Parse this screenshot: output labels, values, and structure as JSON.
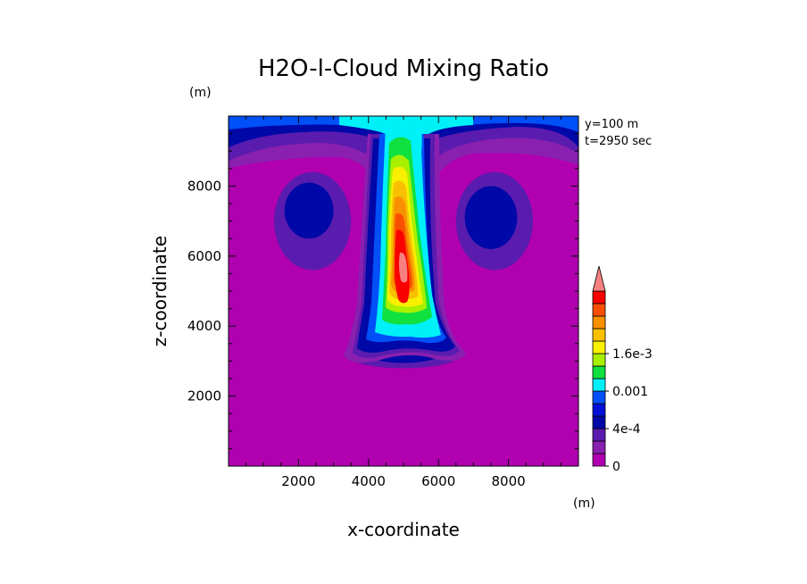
{
  "chart_data": {
    "type": "heatmap",
    "title": "H2O-l-Cloud Mixing Ratio",
    "xlabel": "x-coordinate",
    "ylabel": "z-coordinate",
    "x_unit": "(m)",
    "y_unit": "(m)",
    "xlim": [
      0,
      10000
    ],
    "ylim": [
      0,
      10000
    ],
    "xticks": [
      "2000",
      "4000",
      "6000",
      "8000"
    ],
    "yticks": [
      "2000",
      "4000",
      "6000",
      "8000"
    ],
    "annotations": [
      "y=100 m",
      "t=2950 sec"
    ],
    "colorbar": {
      "labels": [
        "0",
        "4e-4",
        "0.001",
        "1.6e-3"
      ],
      "colors": [
        "#b000b0",
        "#8a20b0",
        "#5a1cae",
        "#0008a8",
        "#0010d8",
        "#0050f8",
        "#00f0f8",
        "#10e040",
        "#a8f000",
        "#f8f000",
        "#f8c000",
        "#f89000",
        "#f85000",
        "#f80000",
        "#f88080"
      ],
      "extend": "max"
    },
    "field_blobs": [
      {
        "level": 2,
        "x": 2400,
        "z": 7000,
        "rx": 1100,
        "rz": 1400
      },
      {
        "level": 3,
        "x": 2300,
        "z": 7300,
        "rx": 700,
        "rz": 800
      },
      {
        "level": 2,
        "x": 7600,
        "z": 7000,
        "rx": 1100,
        "rz": 1400
      },
      {
        "level": 3,
        "x": 7500,
        "z": 7100,
        "rx": 750,
        "rz": 900
      },
      {
        "level": 2,
        "x": 5000,
        "z": 3100,
        "rx": 1500,
        "rz": 300
      },
      {
        "level": 3,
        "x": 5000,
        "z": 3300,
        "rx": 1200,
        "rz": 350
      }
    ]
  }
}
